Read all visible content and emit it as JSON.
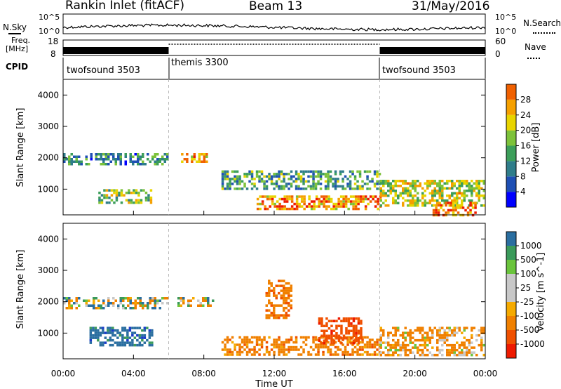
{
  "header": {
    "station": "Rankin Inlet (fitACF)",
    "beam": "Beam 13",
    "date": "31/May/2016"
  },
  "summary_panel": {
    "nsky_label": "N.Sky",
    "nsky_ticks": [
      "10^5",
      "10^0"
    ],
    "nsearch_label": "N.Search",
    "nsearch_ticks": [
      "10^5",
      "10^0"
    ],
    "freq_label_line1": "Freq.",
    "freq_label_line2": "[MHz]",
    "freq_ticks": [
      "18",
      "8"
    ],
    "nave_label": "Nave",
    "nave_ticks": [
      "60",
      "0"
    ],
    "cpid_label": "CPID",
    "cpid_segments": [
      {
        "name": "twofsound 3503",
        "start_hour": 0,
        "end_hour": 6
      },
      {
        "name": "themis 3300",
        "start_hour": 6,
        "end_hour": 18
      },
      {
        "name": "twofsound 3503",
        "start_hour": 18,
        "end_hour": 24
      }
    ]
  },
  "colors": {
    "power_scale": [
      "#0000ff",
      "#1e4fb4",
      "#2f7d8a",
      "#3c9e5a",
      "#7dc23a",
      "#e8d400",
      "#f5a000",
      "#f06000",
      "#ee1a00"
    ],
    "velocity_scale": [
      "#ee1a00",
      "#f05000",
      "#f08000",
      "#f5aa00",
      "#c8c8c8",
      "#c8c8c8",
      "#6ac43c",
      "#3a9a5a",
      "#2a6ea0",
      "#1a3cc8"
    ]
  },
  "chart_data": [
    {
      "type": "heatmap",
      "panel": "power",
      "ylabel": "Slant Range [km]",
      "yticks": [
        "1000",
        "2000",
        "3000",
        "4000"
      ],
      "ylim": [
        180,
        4500
      ],
      "xlim": [
        0,
        24
      ],
      "colorbar_label": "Power [dB]",
      "colorbar_ticks": [
        "4",
        "8",
        "12",
        "16",
        "20",
        "24",
        "28"
      ],
      "colorbar_range": [
        0,
        32
      ],
      "mode_change_hours": [
        6,
        18
      ],
      "echo_regions": [
        {
          "t0": 0.0,
          "t1": 6.0,
          "r0": 1800,
          "r1": 2150,
          "power": 10
        },
        {
          "t0": 6.7,
          "t1": 8.2,
          "r0": 1900,
          "r1": 2150,
          "power": 22
        },
        {
          "t0": 2.0,
          "t1": 5.0,
          "r0": 600,
          "r1": 1000,
          "power": 16
        },
        {
          "t0": 9.0,
          "t1": 18.0,
          "r0": 1000,
          "r1": 1600,
          "power": 12
        },
        {
          "t0": 11.0,
          "t1": 18.0,
          "r0": 350,
          "r1": 800,
          "power": 24
        },
        {
          "t0": 18.0,
          "t1": 24.0,
          "r0": 500,
          "r1": 1300,
          "power": 18
        },
        {
          "t0": 21.0,
          "t1": 23.5,
          "r0": 200,
          "r1": 600,
          "power": 26
        }
      ]
    },
    {
      "type": "heatmap",
      "panel": "velocity",
      "ylabel": "Slant Range [km]",
      "xlabel": "Time UT",
      "xticks": [
        "00:00",
        "04:00",
        "08:00",
        "12:00",
        "16:00",
        "20:00",
        "00:00"
      ],
      "yticks": [
        "1000",
        "2000",
        "3000",
        "4000"
      ],
      "ylim": [
        180,
        4500
      ],
      "xlim": [
        0,
        24
      ],
      "colorbar_label": "Velocity [m s^-1]",
      "colorbar_ticks": [
        "-1000",
        "-500",
        "-100",
        "-25",
        "25",
        "100",
        "500",
        "1000"
      ],
      "mode_change_hours": [
        6,
        18
      ],
      "echo_regions": [
        {
          "t0": 0.0,
          "t1": 6.0,
          "r0": 1800,
          "r1": 2150,
          "velocity": 0
        },
        {
          "t0": 1.5,
          "t1": 5.0,
          "r0": 600,
          "r1": 1200,
          "velocity": 300
        },
        {
          "t0": 6.5,
          "t1": 8.5,
          "r0": 1900,
          "r1": 2150,
          "velocity": 0
        },
        {
          "t0": 9.0,
          "t1": 18.0,
          "r0": 300,
          "r1": 900,
          "velocity": -300
        },
        {
          "t0": 11.5,
          "t1": 13.0,
          "r0": 1500,
          "r1": 2700,
          "velocity": -400
        },
        {
          "t0": 14.5,
          "t1": 17.0,
          "r0": 700,
          "r1": 1500,
          "velocity": -800
        },
        {
          "t0": 18.0,
          "t1": 24.0,
          "r0": 300,
          "r1": 1200,
          "velocity": -200
        }
      ]
    }
  ]
}
